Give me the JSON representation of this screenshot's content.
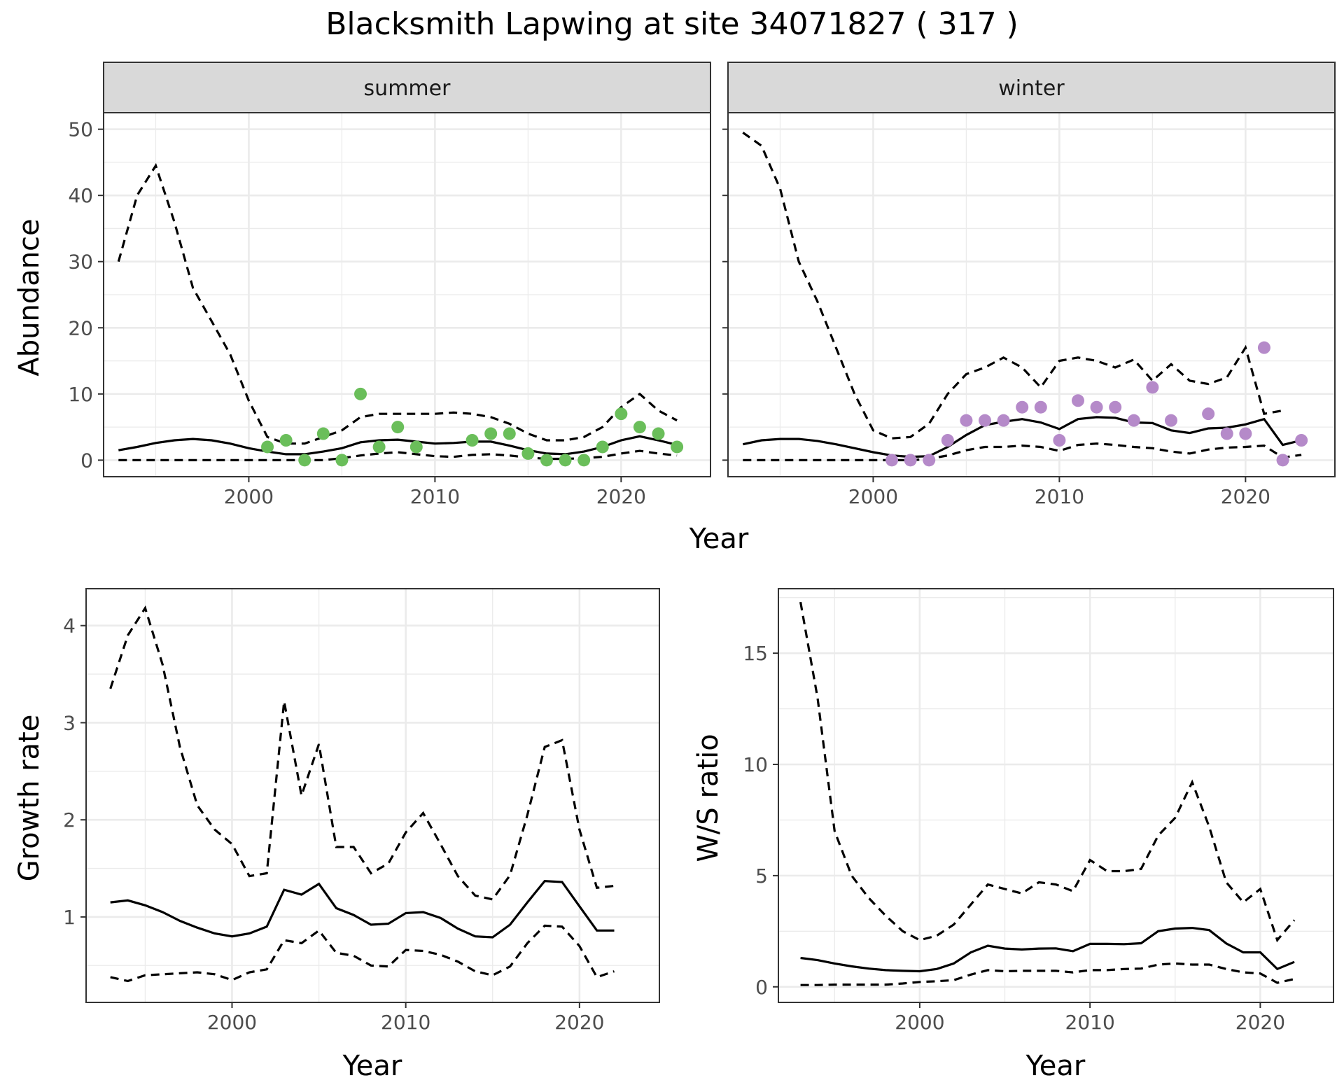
{
  "title": "Blacksmith Lapwing at site 34071827 ( 317 )",
  "colors": {
    "summer_points": "#6abe5a",
    "winter_points": "#b58ac9",
    "lines": "#000000",
    "strip_fill": "#d9d9d9",
    "grid": "#ebebeb"
  },
  "chart_data": [
    {
      "type": "line",
      "facet": "summer",
      "xlabel": "Year",
      "ylabel": "Abundance",
      "xlim": [
        1992.2,
        2024.8
      ],
      "ylim": [
        -2.5,
        52.5
      ],
      "xticks": [
        2000,
        2010,
        2020
      ],
      "yticks": [
        0,
        10,
        20,
        30,
        40,
        50
      ],
      "x": [
        1993,
        1994,
        1995,
        1996,
        1997,
        1998,
        1999,
        2000,
        2001,
        2002,
        2003,
        2004,
        2005,
        2006,
        2007,
        2008,
        2009,
        2010,
        2011,
        2012,
        2013,
        2014,
        2015,
        2016,
        2017,
        2018,
        2019,
        2020,
        2021,
        2022,
        2023
      ],
      "mean": [
        1.5,
        2.0,
        2.6,
        3.0,
        3.2,
        3.0,
        2.5,
        1.8,
        1.3,
        0.9,
        0.9,
        1.3,
        1.8,
        2.7,
        3.0,
        3.1,
        2.8,
        2.5,
        2.6,
        2.8,
        2.8,
        2.2,
        1.5,
        1.0,
        0.9,
        1.3,
        2.0,
        3.0,
        3.6,
        3.0,
        2.3
      ],
      "upper": [
        30.0,
        40.0,
        44.5,
        36.0,
        26.0,
        21.0,
        16.0,
        9.0,
        3.5,
        2.5,
        2.5,
        3.5,
        4.5,
        6.5,
        7.0,
        7.0,
        7.0,
        7.0,
        7.2,
        7.0,
        6.5,
        5.5,
        4.0,
        3.0,
        3.0,
        3.5,
        5.0,
        8.0,
        10.0,
        7.5,
        6.0
      ],
      "lower": [
        0,
        0,
        0,
        0,
        0,
        0,
        0,
        0,
        0,
        0,
        0,
        0,
        0.3,
        0.7,
        1.0,
        1.2,
        0.9,
        0.6,
        0.5,
        0.8,
        0.9,
        0.7,
        0.4,
        0.2,
        0.2,
        0.3,
        0.5,
        1.0,
        1.4,
        1.0,
        0.7
      ],
      "points": {
        "x": [
          2001,
          2002,
          2003,
          2004,
          2005,
          2006,
          2007,
          2008,
          2009,
          2012,
          2013,
          2014,
          2015,
          2016,
          2017,
          2018,
          2019,
          2020,
          2021,
          2022,
          2023
        ],
        "y": [
          2,
          3,
          0,
          4,
          0,
          10,
          2,
          5,
          2,
          3,
          4,
          4,
          1,
          0,
          0,
          0,
          2,
          7,
          5,
          4,
          2
        ]
      }
    },
    {
      "type": "line",
      "facet": "winter",
      "xlabel": "Year",
      "ylabel": "Abundance",
      "xlim": [
        1992.2,
        2024.8
      ],
      "ylim": [
        -2.5,
        52.5
      ],
      "xticks": [
        2000,
        2010,
        2020
      ],
      "yticks": [
        0,
        10,
        20,
        30,
        40,
        50
      ],
      "x": [
        1993,
        1994,
        1995,
        1996,
        1997,
        1998,
        1999,
        2000,
        2001,
        2002,
        2003,
        2004,
        2005,
        2006,
        2007,
        2008,
        2009,
        2010,
        2011,
        2012,
        2013,
        2014,
        2015,
        2016,
        2017,
        2018,
        2019,
        2020,
        2021,
        2022,
        2023
      ],
      "mean": [
        2.4,
        3.0,
        3.2,
        3.2,
        2.9,
        2.4,
        1.8,
        1.2,
        0.7,
        0.5,
        0.6,
        2.0,
        3.8,
        5.3,
        5.8,
        6.2,
        5.7,
        4.7,
        6.2,
        6.5,
        6.4,
        5.7,
        5.6,
        4.5,
        4.1,
        4.8,
        4.9,
        5.4,
        6.2,
        2.3,
        3.0
      ],
      "upper": [
        49.5,
        47.5,
        41.0,
        30.0,
        24.0,
        17.0,
        10.0,
        4.5,
        3.3,
        3.5,
        5.5,
        10.0,
        13.0,
        14.0,
        15.5,
        14.0,
        11.0,
        15.0,
        15.5,
        15.0,
        14.0,
        15.2,
        12.0,
        14.5,
        12.0,
        11.5,
        12.5,
        17.0,
        7.0,
        7.5,
        null
      ],
      "lower": [
        0,
        0,
        0,
        0,
        0,
        0,
        0,
        0,
        0,
        0,
        0.2,
        0.7,
        1.5,
        2.0,
        2.0,
        2.2,
        2.0,
        1.4,
        2.3,
        2.5,
        2.3,
        2.0,
        1.8,
        1.3,
        1.0,
        1.6,
        1.9,
        2.0,
        2.2,
        0.4,
        0.8
      ],
      "points": {
        "x": [
          2001,
          2002,
          2003,
          2004,
          2005,
          2006,
          2007,
          2008,
          2009,
          2010,
          2011,
          2012,
          2013,
          2014,
          2015,
          2016,
          2018,
          2019,
          2020,
          2021,
          2022,
          2023
        ],
        "y": [
          0,
          0,
          0,
          3,
          6,
          6,
          6,
          8,
          8,
          3,
          9,
          8,
          8,
          6,
          11,
          6,
          7,
          4,
          4,
          17,
          0,
          3
        ]
      }
    },
    {
      "type": "line",
      "facet": "",
      "xlabel": "Year",
      "ylabel": "Growth rate",
      "xlim": [
        1991.6,
        2024.6
      ],
      "ylim": [
        0.12,
        4.38
      ],
      "xticks": [
        2000,
        2010,
        2020
      ],
      "yticks": [
        1,
        2,
        3,
        4
      ],
      "x": [
        1993,
        1994,
        1995,
        1996,
        1997,
        1998,
        1999,
        2000,
        2001,
        2002,
        2003,
        2004,
        2005,
        2006,
        2007,
        2008,
        2009,
        2010,
        2011,
        2012,
        2013,
        2014,
        2015,
        2016,
        2017,
        2018,
        2019,
        2020,
        2021,
        2022
      ],
      "mean": [
        1.15,
        1.17,
        1.12,
        1.05,
        0.96,
        0.89,
        0.83,
        0.8,
        0.83,
        0.9,
        1.28,
        1.23,
        1.34,
        1.09,
        1.02,
        0.92,
        0.93,
        1.04,
        1.05,
        0.99,
        0.88,
        0.8,
        0.79,
        0.92,
        1.15,
        1.37,
        1.36,
        1.11,
        0.86,
        0.86
      ],
      "upper": [
        3.35,
        3.9,
        4.18,
        3.6,
        2.75,
        2.15,
        1.9,
        1.75,
        1.42,
        1.45,
        3.22,
        2.25,
        2.78,
        1.72,
        1.72,
        1.45,
        1.55,
        1.87,
        2.07,
        1.75,
        1.42,
        1.22,
        1.18,
        1.43,
        2.05,
        2.75,
        2.82,
        1.9,
        1.3,
        1.32
      ],
      "lower": [
        0.38,
        0.34,
        0.4,
        0.41,
        0.42,
        0.43,
        0.41,
        0.35,
        0.43,
        0.46,
        0.76,
        0.73,
        0.86,
        0.63,
        0.6,
        0.5,
        0.49,
        0.66,
        0.65,
        0.61,
        0.54,
        0.44,
        0.4,
        0.49,
        0.73,
        0.91,
        0.9,
        0.7,
        0.38,
        0.44
      ]
    },
    {
      "type": "line",
      "facet": "",
      "xlabel": "Year",
      "ylabel": "W/S ratio",
      "xlim": [
        1991.7,
        2024.3
      ],
      "ylim": [
        -0.7,
        17.9
      ],
      "xticks": [
        2000,
        2010,
        2020
      ],
      "yticks": [
        0,
        5,
        10,
        15
      ],
      "x": [
        1993,
        1994,
        1995,
        1996,
        1997,
        1998,
        1999,
        2000,
        2001,
        2002,
        2003,
        2004,
        2005,
        2006,
        2007,
        2008,
        2009,
        2010,
        2011,
        2012,
        2013,
        2014,
        2015,
        2016,
        2017,
        2018,
        2019,
        2020,
        2021,
        2022
      ],
      "mean": [
        1.3,
        1.2,
        1.05,
        0.92,
        0.82,
        0.75,
        0.72,
        0.7,
        0.8,
        1.05,
        1.55,
        1.85,
        1.72,
        1.68,
        1.72,
        1.73,
        1.6,
        1.93,
        1.93,
        1.92,
        1.96,
        2.5,
        2.62,
        2.65,
        2.55,
        1.95,
        1.55,
        1.55,
        0.8,
        1.12
      ],
      "upper": [
        17.3,
        13.0,
        7.0,
        5.0,
        4.0,
        3.2,
        2.5,
        2.1,
        2.3,
        2.8,
        3.7,
        4.6,
        4.4,
        4.2,
        4.7,
        4.6,
        4.3,
        5.7,
        5.2,
        5.2,
        5.3,
        6.8,
        7.6,
        9.2,
        7.2,
        4.7,
        3.8,
        4.4,
        2.1,
        3.0
      ],
      "lower": [
        0.08,
        0.08,
        0.1,
        0.1,
        0.1,
        0.1,
        0.15,
        0.22,
        0.25,
        0.3,
        0.55,
        0.75,
        0.7,
        0.72,
        0.72,
        0.72,
        0.65,
        0.75,
        0.75,
        0.8,
        0.82,
        1.0,
        1.05,
        1.0,
        1.0,
        0.8,
        0.65,
        0.6,
        0.18,
        0.35
      ]
    }
  ]
}
